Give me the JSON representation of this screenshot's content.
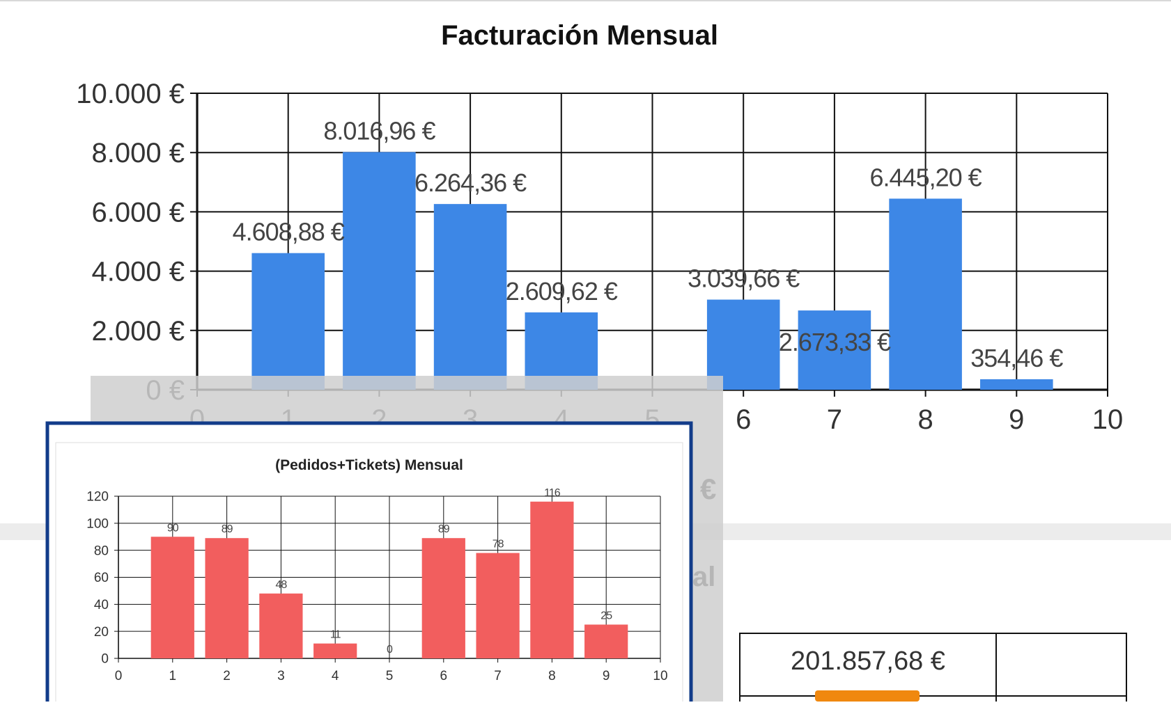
{
  "colors": {
    "primary_bar": "#3d87e6",
    "secondary_bar": "#f25e5e",
    "popup_border": "#123c8a",
    "shadow": "#c9c9c9",
    "separator": "#e4e4e4",
    "accent_orange": "#f0880f"
  },
  "background": {
    "partial_label_1": "€",
    "partial_label_2": "al",
    "total_value": "201.857,68 €"
  },
  "chart_data": [
    {
      "type": "bar",
      "title": "Facturación Mensual",
      "xlabel": "",
      "ylabel": "",
      "x": [
        1,
        2,
        3,
        4,
        5,
        6,
        7,
        8,
        9
      ],
      "values": [
        4608.88,
        8016.96,
        6264.36,
        2609.62,
        0,
        3039.66,
        2673.33,
        6445.2,
        354.46
      ],
      "data_labels": [
        "4.608,88 €",
        "8.016,96 €",
        "6.264,36 €",
        "2.609,62 €",
        "",
        "3.039,66 €",
        "2.673,33 €",
        "6.445,20 €",
        "354,46 €"
      ],
      "xlim": [
        0,
        10
      ],
      "ylim": [
        0,
        10000
      ],
      "y_ticks": [
        "0 €",
        "2.000 €",
        "4.000 €",
        "6.000 €",
        "8.000 €",
        "10.000 €"
      ],
      "x_ticks": [
        "0",
        "1",
        "2",
        "3",
        "4",
        "5",
        "6",
        "7",
        "8",
        "9",
        "10"
      ],
      "grid": true,
      "legend": "none"
    },
    {
      "type": "bar",
      "title": "(Pedidos+Tickets) Mensual",
      "xlabel": "",
      "ylabel": "",
      "x": [
        1,
        2,
        3,
        4,
        5,
        6,
        7,
        8,
        9
      ],
      "values": [
        90,
        89,
        48,
        11,
        0,
        89,
        78,
        116,
        25
      ],
      "data_labels": [
        "90",
        "89",
        "48",
        "11",
        "0",
        "89",
        "78",
        "116",
        "25"
      ],
      "xlim": [
        0,
        10
      ],
      "ylim": [
        0,
        120
      ],
      "y_ticks": [
        "0",
        "20",
        "40",
        "60",
        "80",
        "100",
        "120"
      ],
      "x_ticks": [
        "0",
        "1",
        "2",
        "3",
        "4",
        "5",
        "6",
        "7",
        "8",
        "9",
        "10"
      ],
      "grid": true,
      "legend": "none"
    }
  ]
}
